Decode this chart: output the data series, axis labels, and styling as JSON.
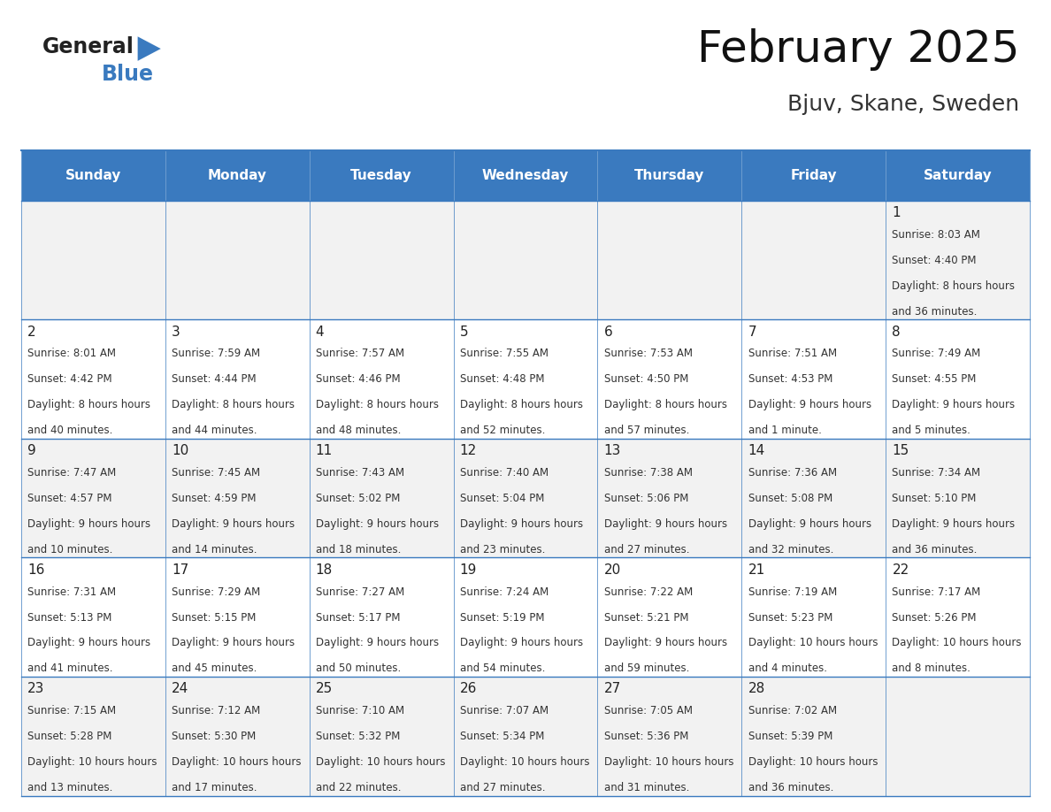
{
  "title": "February 2025",
  "subtitle": "Bjuv, Skane, Sweden",
  "header_color": "#3a7abf",
  "header_text_color": "#ffffff",
  "border_color": "#3a7abf",
  "day_names": [
    "Sunday",
    "Monday",
    "Tuesday",
    "Wednesday",
    "Thursday",
    "Friday",
    "Saturday"
  ],
  "days": [
    {
      "day": 1,
      "col": 6,
      "row": 0,
      "sunrise": "8:03 AM",
      "sunset": "4:40 PM",
      "daylight": "8 hours and 36 minutes."
    },
    {
      "day": 2,
      "col": 0,
      "row": 1,
      "sunrise": "8:01 AM",
      "sunset": "4:42 PM",
      "daylight": "8 hours and 40 minutes."
    },
    {
      "day": 3,
      "col": 1,
      "row": 1,
      "sunrise": "7:59 AM",
      "sunset": "4:44 PM",
      "daylight": "8 hours and 44 minutes."
    },
    {
      "day": 4,
      "col": 2,
      "row": 1,
      "sunrise": "7:57 AM",
      "sunset": "4:46 PM",
      "daylight": "8 hours and 48 minutes."
    },
    {
      "day": 5,
      "col": 3,
      "row": 1,
      "sunrise": "7:55 AM",
      "sunset": "4:48 PM",
      "daylight": "8 hours and 52 minutes."
    },
    {
      "day": 6,
      "col": 4,
      "row": 1,
      "sunrise": "7:53 AM",
      "sunset": "4:50 PM",
      "daylight": "8 hours and 57 minutes."
    },
    {
      "day": 7,
      "col": 5,
      "row": 1,
      "sunrise": "7:51 AM",
      "sunset": "4:53 PM",
      "daylight": "9 hours and 1 minute."
    },
    {
      "day": 8,
      "col": 6,
      "row": 1,
      "sunrise": "7:49 AM",
      "sunset": "4:55 PM",
      "daylight": "9 hours and 5 minutes."
    },
    {
      "day": 9,
      "col": 0,
      "row": 2,
      "sunrise": "7:47 AM",
      "sunset": "4:57 PM",
      "daylight": "9 hours and 10 minutes."
    },
    {
      "day": 10,
      "col": 1,
      "row": 2,
      "sunrise": "7:45 AM",
      "sunset": "4:59 PM",
      "daylight": "9 hours and 14 minutes."
    },
    {
      "day": 11,
      "col": 2,
      "row": 2,
      "sunrise": "7:43 AM",
      "sunset": "5:02 PM",
      "daylight": "9 hours and 18 minutes."
    },
    {
      "day": 12,
      "col": 3,
      "row": 2,
      "sunrise": "7:40 AM",
      "sunset": "5:04 PM",
      "daylight": "9 hours and 23 minutes."
    },
    {
      "day": 13,
      "col": 4,
      "row": 2,
      "sunrise": "7:38 AM",
      "sunset": "5:06 PM",
      "daylight": "9 hours and 27 minutes."
    },
    {
      "day": 14,
      "col": 5,
      "row": 2,
      "sunrise": "7:36 AM",
      "sunset": "5:08 PM",
      "daylight": "9 hours and 32 minutes."
    },
    {
      "day": 15,
      "col": 6,
      "row": 2,
      "sunrise": "7:34 AM",
      "sunset": "5:10 PM",
      "daylight": "9 hours and 36 minutes."
    },
    {
      "day": 16,
      "col": 0,
      "row": 3,
      "sunrise": "7:31 AM",
      "sunset": "5:13 PM",
      "daylight": "9 hours and 41 minutes."
    },
    {
      "day": 17,
      "col": 1,
      "row": 3,
      "sunrise": "7:29 AM",
      "sunset": "5:15 PM",
      "daylight": "9 hours and 45 minutes."
    },
    {
      "day": 18,
      "col": 2,
      "row": 3,
      "sunrise": "7:27 AM",
      "sunset": "5:17 PM",
      "daylight": "9 hours and 50 minutes."
    },
    {
      "day": 19,
      "col": 3,
      "row": 3,
      "sunrise": "7:24 AM",
      "sunset": "5:19 PM",
      "daylight": "9 hours and 54 minutes."
    },
    {
      "day": 20,
      "col": 4,
      "row": 3,
      "sunrise": "7:22 AM",
      "sunset": "5:21 PM",
      "daylight": "9 hours and 59 minutes."
    },
    {
      "day": 21,
      "col": 5,
      "row": 3,
      "sunrise": "7:19 AM",
      "sunset": "5:23 PM",
      "daylight": "10 hours and 4 minutes."
    },
    {
      "day": 22,
      "col": 6,
      "row": 3,
      "sunrise": "7:17 AM",
      "sunset": "5:26 PM",
      "daylight": "10 hours and 8 minutes."
    },
    {
      "day": 23,
      "col": 0,
      "row": 4,
      "sunrise": "7:15 AM",
      "sunset": "5:28 PM",
      "daylight": "10 hours and 13 minutes."
    },
    {
      "day": 24,
      "col": 1,
      "row": 4,
      "sunrise": "7:12 AM",
      "sunset": "5:30 PM",
      "daylight": "10 hours and 17 minutes."
    },
    {
      "day": 25,
      "col": 2,
      "row": 4,
      "sunrise": "7:10 AM",
      "sunset": "5:32 PM",
      "daylight": "10 hours and 22 minutes."
    },
    {
      "day": 26,
      "col": 3,
      "row": 4,
      "sunrise": "7:07 AM",
      "sunset": "5:34 PM",
      "daylight": "10 hours and 27 minutes."
    },
    {
      "day": 27,
      "col": 4,
      "row": 4,
      "sunrise": "7:05 AM",
      "sunset": "5:36 PM",
      "daylight": "10 hours and 31 minutes."
    },
    {
      "day": 28,
      "col": 5,
      "row": 4,
      "sunrise": "7:02 AM",
      "sunset": "5:39 PM",
      "daylight": "10 hours and 36 minutes."
    }
  ],
  "num_rows": 5,
  "logo_general_color": "#222222",
  "logo_blue_color": "#3a7abf"
}
